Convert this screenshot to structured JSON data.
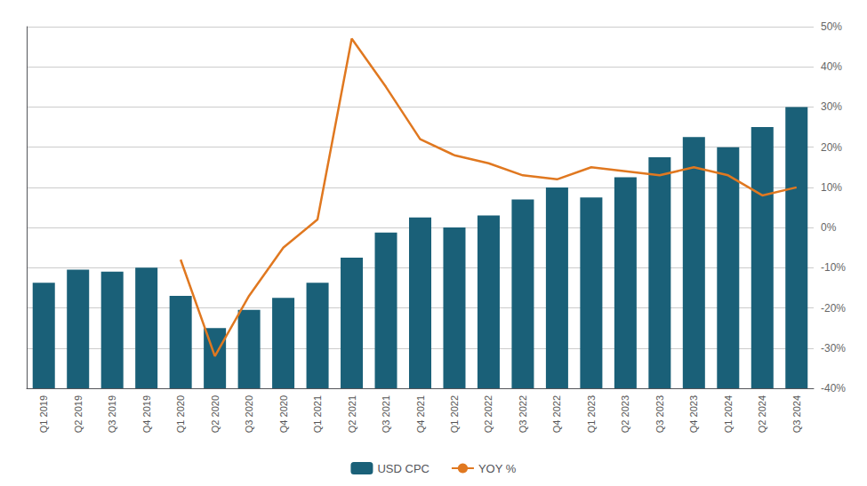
{
  "chart_data": {
    "type": "bar",
    "categories": [
      "Q1 2019",
      "Q2 2019",
      "Q3 2019",
      "Q4 2019",
      "Q1 2020",
      "Q2 2020",
      "Q3 2020",
      "Q4 2020",
      "Q1 2021",
      "Q2 2021",
      "Q3 2021",
      "Q4 2021",
      "Q1 2022",
      "Q2 2022",
      "Q3 2022",
      "Q4 2022",
      "Q1 2023",
      "Q2 2023",
      "Q3 2023",
      "Q4 2023",
      "Q1 2024",
      "Q2 2024",
      "Q3 2024"
    ],
    "series": [
      {
        "name": "USD CPC",
        "type": "bar",
        "color": "#1a6078",
        "values": [
          1.05,
          1.18,
          1.16,
          1.2,
          0.92,
          0.6,
          0.78,
          0.9,
          1.05,
          1.3,
          1.55,
          1.7,
          1.6,
          1.72,
          1.88,
          2.0,
          1.9,
          2.1,
          2.3,
          2.5,
          2.4,
          2.6,
          2.8
        ]
      },
      {
        "name": "YOY %",
        "type": "line",
        "color": "#e07820",
        "axis": "y2",
        "values": [
          null,
          null,
          null,
          null,
          -0.08,
          -0.32,
          -0.17,
          -0.05,
          0.02,
          0.47,
          0.35,
          0.22,
          0.18,
          0.16,
          0.13,
          0.12,
          0.15,
          0.14,
          0.13,
          0.15,
          0.13,
          0.08,
          0.1
        ]
      }
    ],
    "ylim": [
      0,
      3.6
    ],
    "y2lim": [
      -0.4,
      0.5
    ],
    "y2ticks": [
      {
        "value": -0.4,
        "label": "-40%"
      },
      {
        "value": -0.3,
        "label": "-30%"
      },
      {
        "value": -0.2,
        "label": "-20%"
      },
      {
        "value": -0.1,
        "label": "-10%"
      },
      {
        "value": 0.0,
        "label": "0%"
      },
      {
        "value": 0.1,
        "label": "10%"
      },
      {
        "value": 0.2,
        "label": "20%"
      },
      {
        "value": 0.3,
        "label": "30%"
      },
      {
        "value": 0.4,
        "label": "40%"
      },
      {
        "value": 0.5,
        "label": "50%"
      }
    ],
    "grid": true,
    "legend": "bottom"
  }
}
